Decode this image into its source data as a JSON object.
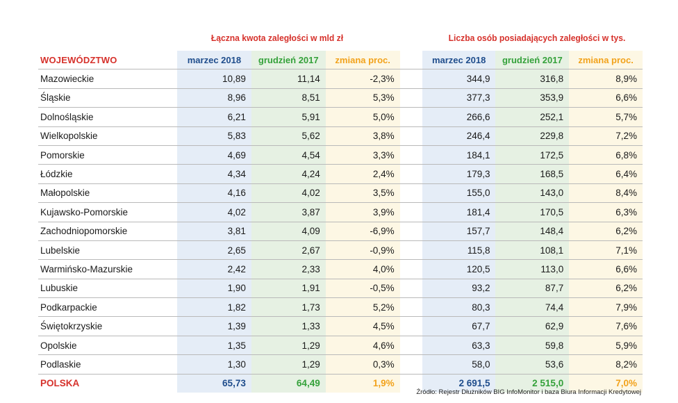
{
  "group_titles": {
    "left": "Łączna kwota zaległości w mld zł",
    "right": "Liczba osób posiadających zaległości w tys."
  },
  "headers": {
    "region": "WOJEWÓDZTWO",
    "amount_mar": "marzec 2018",
    "amount_dec": "grudzień 2017",
    "amount_chg": "zmiana proc.",
    "people_mar": "marzec 2018",
    "people_dec": "grudzień 2017",
    "people_chg": "zmiana proc."
  },
  "rows": [
    {
      "name": "Mazowieckie",
      "a_mar": "10,89",
      "a_dec": "11,14",
      "a_chg": "-2,3%",
      "p_mar": "344,9",
      "p_dec": "316,8",
      "p_chg": "8,9%"
    },
    {
      "name": "Śląskie",
      "a_mar": "8,96",
      "a_dec": "8,51",
      "a_chg": "5,3%",
      "p_mar": "377,3",
      "p_dec": "353,9",
      "p_chg": "6,6%"
    },
    {
      "name": "Dolnośląskie",
      "a_mar": "6,21",
      "a_dec": "5,91",
      "a_chg": "5,0%",
      "p_mar": "266,6",
      "p_dec": "252,1",
      "p_chg": "5,7%"
    },
    {
      "name": "Wielkopolskie",
      "a_mar": "5,83",
      "a_dec": "5,62",
      "a_chg": "3,8%",
      "p_mar": "246,4",
      "p_dec": "229,8",
      "p_chg": "7,2%"
    },
    {
      "name": "Pomorskie",
      "a_mar": "4,69",
      "a_dec": "4,54",
      "a_chg": "3,3%",
      "p_mar": "184,1",
      "p_dec": "172,5",
      "p_chg": "6,8%"
    },
    {
      "name": "Łódzkie",
      "a_mar": "4,34",
      "a_dec": "4,24",
      "a_chg": "2,4%",
      "p_mar": "179,3",
      "p_dec": "168,5",
      "p_chg": "6,4%"
    },
    {
      "name": "Małopolskie",
      "a_mar": "4,16",
      "a_dec": "4,02",
      "a_chg": "3,5%",
      "p_mar": "155,0",
      "p_dec": "143,0",
      "p_chg": "8,4%"
    },
    {
      "name": "Kujawsko-Pomorskie",
      "a_mar": "4,02",
      "a_dec": "3,87",
      "a_chg": "3,9%",
      "p_mar": "181,4",
      "p_dec": "170,5",
      "p_chg": "6,3%"
    },
    {
      "name": "Zachodniopomorskie",
      "a_mar": "3,81",
      "a_dec": "4,09",
      "a_chg": "-6,9%",
      "p_mar": "157,7",
      "p_dec": "148,4",
      "p_chg": "6,2%"
    },
    {
      "name": "Lubelskie",
      "a_mar": "2,65",
      "a_dec": "2,67",
      "a_chg": "-0,9%",
      "p_mar": "115,8",
      "p_dec": "108,1",
      "p_chg": "7,1%"
    },
    {
      "name": "Warmińsko-Mazurskie",
      "a_mar": "2,42",
      "a_dec": "2,33",
      "a_chg": "4,0%",
      "p_mar": "120,5",
      "p_dec": "113,0",
      "p_chg": "6,6%"
    },
    {
      "name": "Lubuskie",
      "a_mar": "1,90",
      "a_dec": "1,91",
      "a_chg": "-0,5%",
      "p_mar": "93,2",
      "p_dec": "87,7",
      "p_chg": "6,2%"
    },
    {
      "name": "Podkarpackie",
      "a_mar": "1,82",
      "a_dec": "1,73",
      "a_chg": "5,2%",
      "p_mar": "80,3",
      "p_dec": "74,4",
      "p_chg": "7,9%"
    },
    {
      "name": "Świętokrzyskie",
      "a_mar": "1,39",
      "a_dec": "1,33",
      "a_chg": "4,5%",
      "p_mar": "67,7",
      "p_dec": "62,9",
      "p_chg": "7,6%"
    },
    {
      "name": "Opolskie",
      "a_mar": "1,35",
      "a_dec": "1,29",
      "a_chg": "4,6%",
      "p_mar": "63,3",
      "p_dec": "59,8",
      "p_chg": "5,9%"
    },
    {
      "name": "Podlaskie",
      "a_mar": "1,30",
      "a_dec": "1,29",
      "a_chg": "0,3%",
      "p_mar": "58,0",
      "p_dec": "53,6",
      "p_chg": "8,2%"
    }
  ],
  "total": {
    "name": "POLSKA",
    "a_mar": "65,73",
    "a_dec": "64,49",
    "a_chg": "1,9%",
    "p_mar": "2 691,5",
    "p_dec": "2 515,0",
    "p_chg": "7,0%"
  },
  "source": "Źródło: Rejestr Dłużników BIG InfoMonitor i baza Biura Informacji Kredytowej",
  "colors": {
    "title_red": "#d6312b",
    "march_blue": "#1f4d8c",
    "december_green": "#34a13a",
    "change_orange": "#f2a21b",
    "bg_blue": "#e5edf7",
    "bg_green": "#e6f1e3",
    "bg_yellow": "#fdf7e4"
  }
}
